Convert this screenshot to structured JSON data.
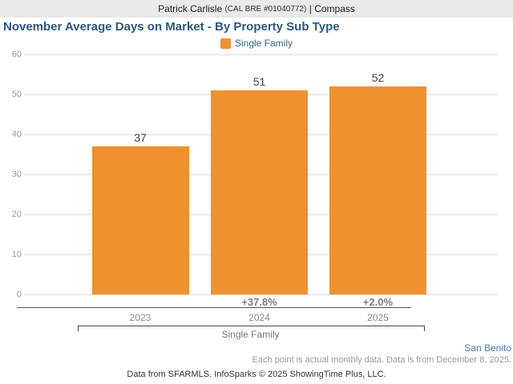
{
  "header": {
    "name": "Patrick Carlisle",
    "license": "(CAL BRE #01040772)",
    "separator": "|",
    "brand": "Compass"
  },
  "title": "November Average Days on Market - By Property Sub Type",
  "legend": {
    "label": "Single Family"
  },
  "chart_data": {
    "type": "bar",
    "title": "November Average Days on Market - By Property Sub Type",
    "series_name": "Single Family",
    "categories": [
      "2023",
      "2024",
      "2025"
    ],
    "values": [
      37,
      51,
      52
    ],
    "value_labels": [
      "37",
      "51",
      "52"
    ],
    "pct_change_labels": [
      "",
      "+37.8%",
      "+2.0%"
    ],
    "group_label": "Single Family",
    "yticks": [
      0,
      10,
      20,
      30,
      40,
      50,
      60
    ],
    "ylim": [
      0,
      60
    ],
    "xlabel": "",
    "ylabel": "",
    "grid": "horizontal",
    "legend_position": "top-center",
    "bar_color": "#f0912f"
  },
  "footer": {
    "region": "San Benito",
    "note": "Each point is actual monthly data. Data is from December 8, 2025.",
    "attribution": "Data from SFARMLS. InfoSparks © 2025 ShowingTime Plus, LLC."
  },
  "colors": {
    "bar_orange": "#f0912f",
    "title_blue": "#2b5780",
    "legend_blue": "#35648f",
    "region_blue": "#4e7cb0",
    "header_bg": "#eaeaea",
    "gridline": "#dddddd",
    "axis_text": "#999999"
  }
}
